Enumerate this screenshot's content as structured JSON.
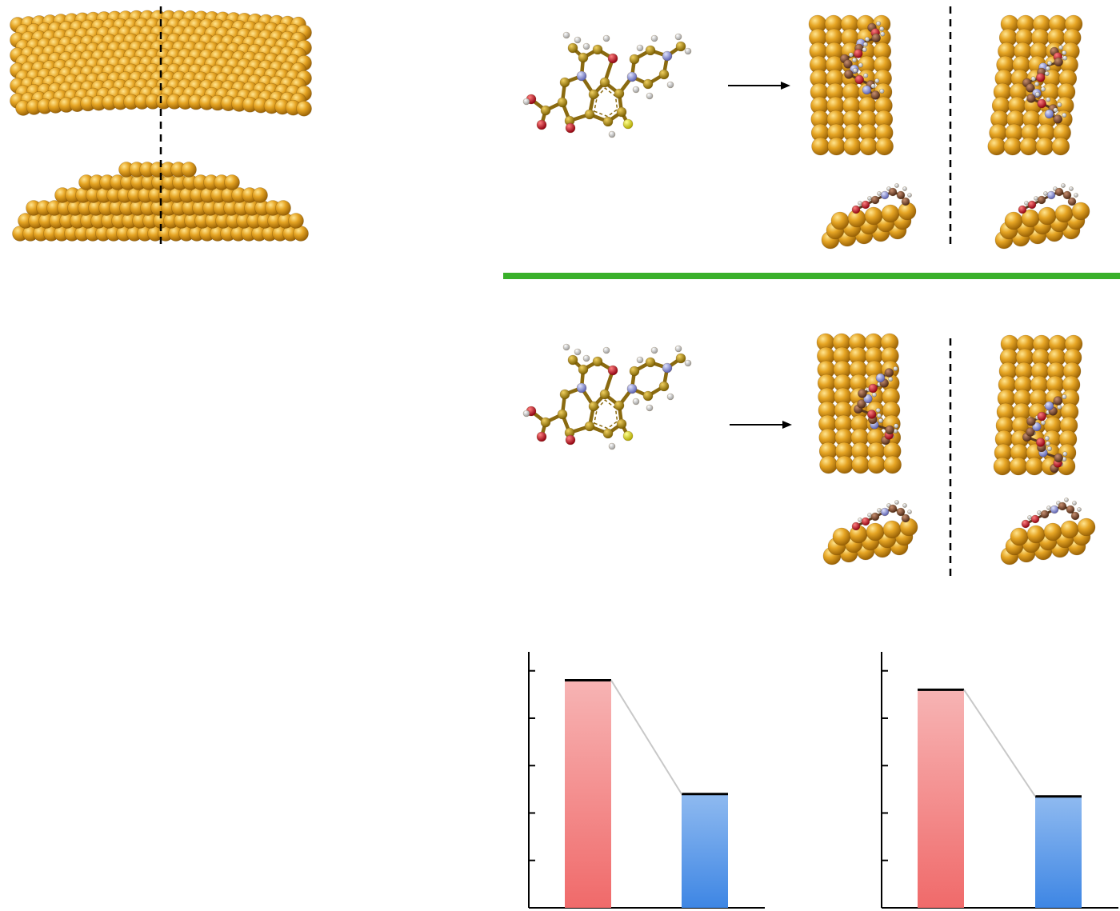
{
  "colors": {
    "gold": "#e0a020",
    "gold_light": "#ffd060",
    "gold_dark": "#a06a08",
    "carbon": "#b08a10",
    "carbon_adsorbed": "#7a4a30",
    "nitrogen": "#9aa0e0",
    "oxygen": "#d21f2a",
    "hydrogen": "#e6e6e6",
    "fluorine": "#f2ee10",
    "divider_green": "#39b02a",
    "bar_red": "#f07070",
    "bar_blue": "#4a8fe6"
  },
  "icons": {
    "arrow": "right-arrow-icon",
    "cluster": "gold-nanoparticle-icon",
    "molecule": "levofloxacin-molecule-icon"
  },
  "chart_data": [
    {
      "type": "bar",
      "categories": [
        "",
        ""
      ],
      "values": [
        4.8,
        2.4
      ],
      "ylim": [
        0,
        5.4
      ],
      "yticks": [
        1,
        2,
        3,
        4,
        5
      ],
      "title": "",
      "xlabel": "",
      "ylabel": ""
    },
    {
      "type": "bar",
      "categories": [
        "",
        ""
      ],
      "values": [
        4.6,
        2.35
      ],
      "ylim": [
        0,
        5.4
      ],
      "yticks": [
        1,
        2,
        3,
        4,
        5
      ],
      "title": "",
      "xlabel": "",
      "ylabel": ""
    }
  ]
}
